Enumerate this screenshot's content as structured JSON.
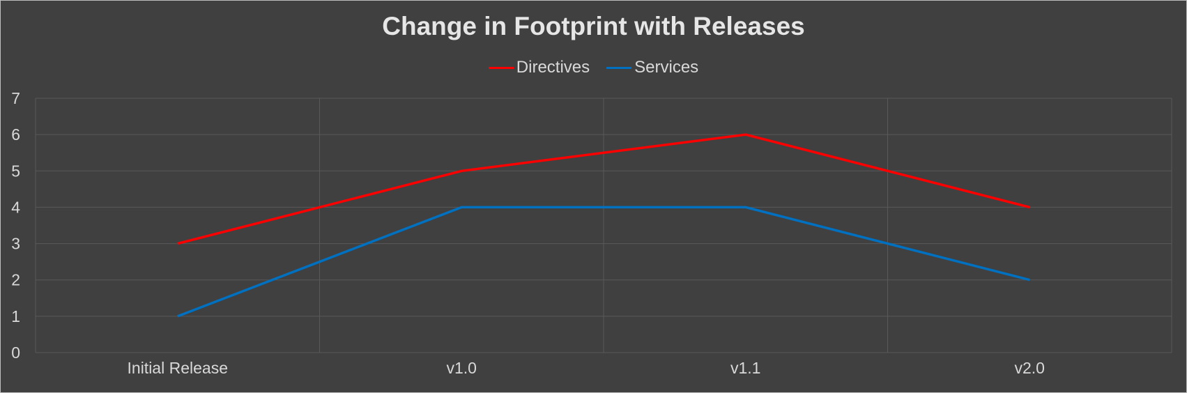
{
  "chart_data": {
    "type": "line",
    "title": "Change in Footprint with Releases",
    "categories": [
      "Initial Release",
      "v1.0",
      "v1.1",
      "v2.0"
    ],
    "series": [
      {
        "name": "Directives",
        "values": [
          3,
          5,
          6,
          4
        ],
        "color": "#ff0000"
      },
      {
        "name": "Services",
        "values": [
          1,
          4,
          4,
          2
        ],
        "color": "#0070c0"
      }
    ],
    "ylim": [
      0,
      7
    ],
    "yticks": [
      0,
      1,
      2,
      3,
      4,
      5,
      6,
      7
    ],
    "xlabel": "",
    "ylabel": "",
    "grid": true,
    "legend_position": "top"
  }
}
